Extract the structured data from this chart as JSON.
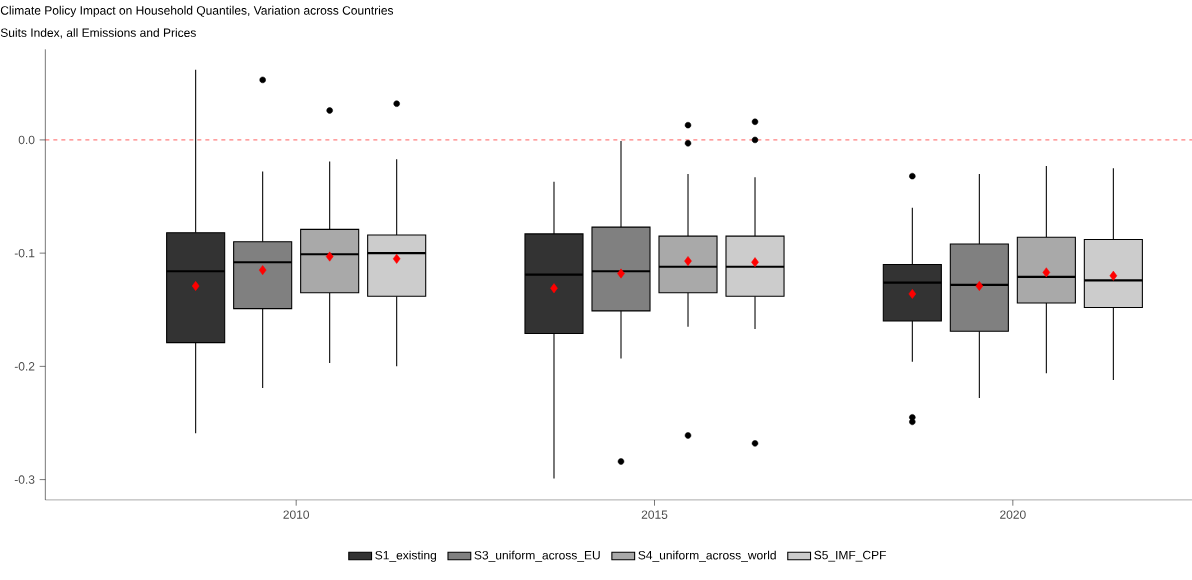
{
  "chart_data": {
    "type": "box",
    "title": "Climate Policy Impact on Household Quantiles, Variation across Countries",
    "subtitle": "Suits Index, all Emissions and Prices",
    "categories": [
      "2010",
      "2015",
      "2020"
    ],
    "ylim": [
      -0.318,
      0.08
    ],
    "yticks": [
      -0.3,
      -0.2,
      -0.1,
      {
        "value": 0,
        "label": "0.0"
      }
    ],
    "legend": "bottom",
    "ref_lines": [
      {
        "axis": "y",
        "value": 0,
        "color": "#ff0000",
        "line_style": "dashed"
      }
    ],
    "series": [
      {
        "name": "S1_existing",
        "color": "#333333",
        "boxes": [
          {
            "low": -0.259,
            "q1": -0.179,
            "median": -0.116,
            "q3": -0.082,
            "high": 0.062,
            "mean": -0.129
          },
          {
            "low": -0.299,
            "q1": -0.171,
            "median": -0.119,
            "q3": -0.083,
            "high": -0.037,
            "mean": -0.131
          },
          {
            "low": -0.196,
            "q1": -0.16,
            "median": -0.126,
            "q3": -0.11,
            "high": -0.06,
            "mean": -0.136,
            "outliers": [
              -0.032,
              -0.245,
              -0.249
            ]
          }
        ]
      },
      {
        "name": "S3_uniform_across_EU",
        "color": "#808080",
        "boxes": [
          {
            "low": -0.219,
            "q1": -0.149,
            "median": -0.108,
            "q3": -0.09,
            "high": -0.028,
            "mean": -0.115,
            "outliers": [
              0.053
            ]
          },
          {
            "low": -0.193,
            "q1": -0.151,
            "median": -0.116,
            "q3": -0.077,
            "high": -0.001,
            "mean": -0.118,
            "outliers": [
              -0.284
            ]
          },
          {
            "low": -0.228,
            "q1": -0.169,
            "median": -0.128,
            "q3": -0.092,
            "high": -0.03,
            "mean": -0.129
          }
        ]
      },
      {
        "name": "S4_uniform_across_world",
        "color": "#a9a9a9",
        "boxes": [
          {
            "low": -0.197,
            "q1": -0.135,
            "median": -0.101,
            "q3": -0.079,
            "high": -0.019,
            "mean": -0.103,
            "outliers": [
              0.026
            ]
          },
          {
            "low": -0.165,
            "q1": -0.135,
            "median": -0.112,
            "q3": -0.085,
            "high": -0.03,
            "mean": -0.107,
            "outliers": [
              0.013,
              -0.003,
              -0.261
            ]
          },
          {
            "low": -0.206,
            "q1": -0.144,
            "median": -0.121,
            "q3": -0.086,
            "high": -0.023,
            "mean": -0.117
          }
        ]
      },
      {
        "name": "S5_IMF_CPF",
        "color": "#cccccc",
        "boxes": [
          {
            "low": -0.2,
            "q1": -0.138,
            "median": -0.1,
            "q3": -0.084,
            "high": -0.017,
            "mean": -0.105,
            "outliers": [
              0.032
            ]
          },
          {
            "low": -0.167,
            "q1": -0.138,
            "median": -0.112,
            "q3": -0.085,
            "high": -0.033,
            "mean": -0.108,
            "outliers": [
              0.016,
              0.0,
              -0.268
            ]
          },
          {
            "low": -0.212,
            "q1": -0.148,
            "median": -0.124,
            "q3": -0.088,
            "high": -0.025,
            "mean": -0.12
          }
        ]
      }
    ]
  }
}
